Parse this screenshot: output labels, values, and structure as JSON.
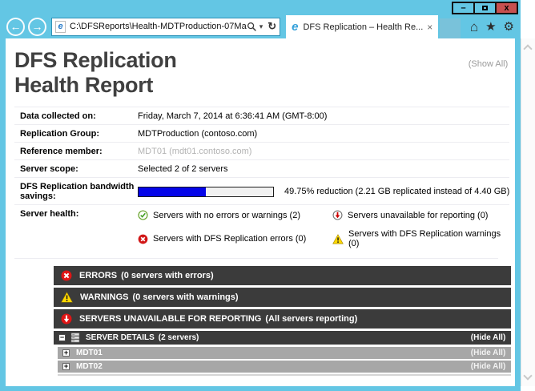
{
  "window": {
    "controls": {
      "minimize": "–",
      "close": "x"
    },
    "chrome": {
      "url": "C:\\DFSReports\\Health-MDTProduction-07Ma",
      "tab_title": "DFS Replication – Health Re...",
      "icons": {
        "caret": "▾",
        "refresh": "↻",
        "tab_close": "×",
        "home": "⌂",
        "star": "★",
        "gear": "⚙",
        "back": "←",
        "forward": "→",
        "ie_page": "e",
        "ie_logo": "e"
      }
    }
  },
  "report": {
    "title_line1": "DFS Replication",
    "title_line2": "Health Report",
    "show_all": "(Show All)",
    "info_rows": [
      {
        "label": "Data collected on:",
        "value": "Friday, March 7, 2014 at 6:36:41 AM (GMT-8:00)"
      },
      {
        "label": "Replication Group:",
        "value": "MDTProduction (contoso.com)"
      },
      {
        "label": "Reference member:",
        "value": "MDT01 (mdt01.contoso.com)"
      },
      {
        "label": "Server scope:",
        "value": "Selected 2 of 2 servers"
      }
    ],
    "bandwidth": {
      "label": "DFS Replication bandwidth savings:",
      "percent": 49.75,
      "text": "49.75% reduction (2.21 GB replicated instead of 4.40 GB)"
    },
    "server_health": {
      "label": "Server health:",
      "items": [
        {
          "icon": "ok-icon",
          "text": "Servers with no errors or warnings (2)"
        },
        {
          "icon": "unavailable-icon",
          "text": "Servers unavailable for reporting (0)"
        },
        {
          "icon": "error-icon",
          "text": "Servers with DFS Replication errors (0)"
        },
        {
          "icon": "warning-icon",
          "text": "Servers with DFS Replication warnings (0)"
        }
      ]
    },
    "sections": [
      {
        "icon": "error-icon",
        "title": "ERRORS",
        "subtitle": "(0 servers with errors)"
      },
      {
        "icon": "warning-icon",
        "title": "WARNINGS",
        "subtitle": "(0 servers with warnings)"
      },
      {
        "icon": "unavailable-icon",
        "title": "SERVERS UNAVAILABLE FOR REPORTING",
        "subtitle": "(All servers reporting)"
      }
    ],
    "server_details": {
      "expander": "−",
      "title": "SERVER DETAILS",
      "subtitle": "(2 servers)",
      "hide_all": "(Hide All)",
      "servers": [
        {
          "expander": "+",
          "name": "MDT01",
          "hide_all": "(Hide All)"
        },
        {
          "expander": "+",
          "name": "MDT02",
          "hide_all": "(Hide All)"
        }
      ]
    }
  },
  "colors": {
    "frame_blue": "#63c6e4",
    "close_red": "#c75050",
    "bar_dark": "#3b3b3b",
    "server_row_gray": "#a7a7a7",
    "progress_blue": "#0505e8",
    "ok_green": "#3f9e1f",
    "error_red": "#d11717",
    "warning_yellow": "#ffd800"
  }
}
